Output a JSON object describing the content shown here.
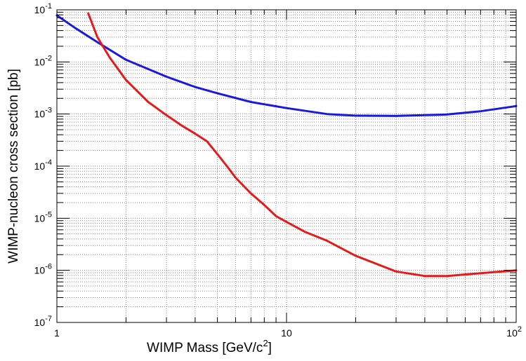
{
  "chart_data": {
    "type": "line",
    "title": "",
    "xlabel": "WIMP Mass [GeV/c²]",
    "ylabel": "WIMP-nucleon cross section [pb]",
    "x_scale": "log",
    "y_scale": "log",
    "xlim": [
      1,
      100
    ],
    "ylim": [
      1e-07,
      0.1
    ],
    "grid": true,
    "legend": "none",
    "x_ticks": [
      {
        "base": "1",
        "exp": ""
      },
      {
        "base": "10",
        "exp": ""
      },
      {
        "base": "10",
        "exp": "2"
      }
    ],
    "y_ticks": [
      {
        "base": "10",
        "exp": "-7"
      },
      {
        "base": "10",
        "exp": "-6"
      },
      {
        "base": "10",
        "exp": "-5"
      },
      {
        "base": "10",
        "exp": "-4"
      },
      {
        "base": "10",
        "exp": "-3"
      },
      {
        "base": "10",
        "exp": "-2"
      },
      {
        "base": "10",
        "exp": "-1"
      }
    ],
    "series": [
      {
        "color": "#1a1adc",
        "points": [
          [
            1.0,
            0.078
          ],
          [
            1.2,
            0.045
          ],
          [
            1.5,
            0.024
          ],
          [
            2.0,
            0.011
          ],
          [
            3.0,
            0.0052
          ],
          [
            4.0,
            0.0033
          ],
          [
            5.0,
            0.0025
          ],
          [
            7.0,
            0.0017
          ],
          [
            10.0,
            0.0013
          ],
          [
            15.0,
            0.001
          ],
          [
            20.0,
            0.00093
          ],
          [
            30.0,
            0.00092
          ],
          [
            50.0,
            0.00098
          ],
          [
            70.0,
            0.00113
          ],
          [
            100.0,
            0.00142
          ]
        ]
      },
      {
        "color": "#e51a1a",
        "points": [
          [
            1.37,
            0.085
          ],
          [
            1.5,
            0.03
          ],
          [
            1.7,
            0.012
          ],
          [
            2.0,
            0.0045
          ],
          [
            2.5,
            0.0017
          ],
          [
            3.0,
            0.00095
          ],
          [
            3.5,
            0.0006
          ],
          [
            4.0,
            0.00042
          ],
          [
            4.5,
            0.0003
          ],
          [
            5.0,
            0.00017
          ],
          [
            5.5,
            0.0001
          ],
          [
            6.0,
            6e-05
          ],
          [
            7.0,
            3e-05
          ],
          [
            8.0,
            1.8e-05
          ],
          [
            9.0,
            1.1e-05
          ],
          [
            10.0,
            8.5e-06
          ],
          [
            12.0,
            5.5e-06
          ],
          [
            15.0,
            3.7e-06
          ],
          [
            20.0,
            1.9e-06
          ],
          [
            30.0,
            9.5e-07
          ],
          [
            40.0,
            7.8e-07
          ],
          [
            50.0,
            7.8e-07
          ],
          [
            70.0,
            8.8e-07
          ],
          [
            100.0,
            1e-06
          ]
        ]
      }
    ]
  }
}
